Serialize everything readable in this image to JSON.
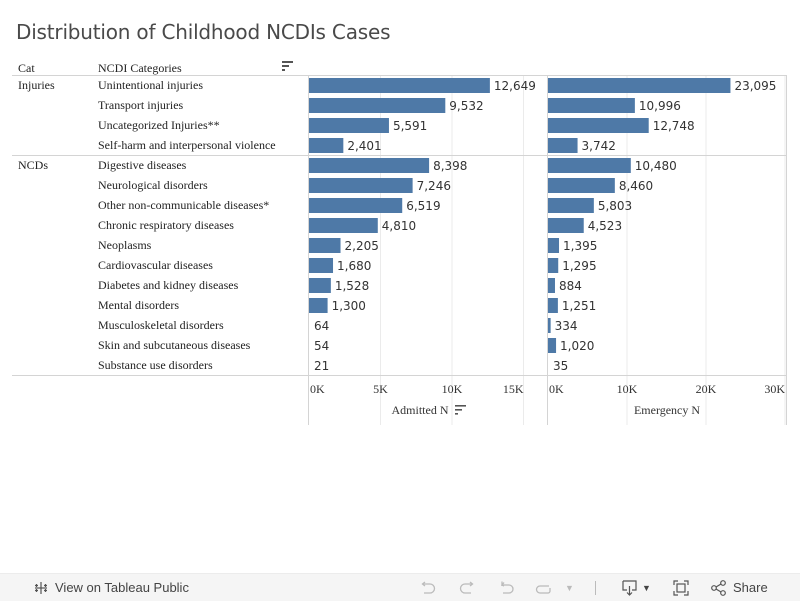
{
  "title": "Distribution of Childhood NCDIs Cases",
  "headers": {
    "cat": "Cat",
    "ncdi": "NCDI Categories"
  },
  "colors": {
    "bar": "#4e79a7",
    "grid": "#ebebeb",
    "border": "#d4d4d4"
  },
  "chart_data": {
    "type": "bar",
    "orientation": "horizontal",
    "title": "Distribution of Childhood NCDIs Cases",
    "groups": [
      {
        "name": "Injuries",
        "categories": [
          "Unintentional injuries",
          "Transport injuries",
          "Uncategorized Injuries**",
          "Self-harm and interpersonal violence"
        ]
      },
      {
        "name": "NCDs",
        "categories": [
          "Digestive diseases",
          "Neurological disorders",
          "Other non-communicable diseases*",
          "Chronic respiratory diseases",
          "Neoplasms",
          "Cardiovascular diseases",
          "Diabetes and kidney diseases",
          "Mental disorders",
          "Musculoskeletal disorders",
          "Skin and subcutaneous diseases",
          "Substance use disorders"
        ]
      }
    ],
    "categories": [
      "Unintentional injuries",
      "Transport injuries",
      "Uncategorized Injuries**",
      "Self-harm and interpersonal violence",
      "Digestive diseases",
      "Neurological disorders",
      "Other non-communicable diseases*",
      "Chronic respiratory diseases",
      "Neoplasms",
      "Cardiovascular diseases",
      "Diabetes and kidney diseases",
      "Mental disorders",
      "Musculoskeletal disorders",
      "Skin and subcutaneous diseases",
      "Substance use disorders"
    ],
    "series": [
      {
        "name": "Admitted N",
        "values": [
          12649,
          9532,
          5591,
          2401,
          8398,
          7246,
          6519,
          4810,
          2205,
          1680,
          1528,
          1300,
          64,
          54,
          21
        ],
        "labels": [
          "12,649",
          "9,532",
          "5,591",
          "2,401",
          "8,398",
          "7,246",
          "6,519",
          "4,810",
          "2,205",
          "1,680",
          "1,528",
          "1,300",
          "64",
          "54",
          "21"
        ],
        "xlim": [
          0,
          15000
        ],
        "ticks": [
          0,
          5000,
          10000,
          15000
        ],
        "tick_labels": [
          "0K",
          "5K",
          "10K",
          "15K"
        ],
        "xlabel": "Admitted N",
        "sorted": true
      },
      {
        "name": "Emergency N",
        "values": [
          23095,
          10996,
          12748,
          3742,
          10480,
          8460,
          5803,
          4523,
          1395,
          1295,
          884,
          1251,
          334,
          1020,
          35
        ],
        "labels": [
          "23,095",
          "10,996",
          "12,748",
          "3,742",
          "10,480",
          "8,460",
          "5,803",
          "4,523",
          "1,395",
          "1,295",
          "884",
          "1,251",
          "334",
          "1,020",
          "35"
        ],
        "xlim": [
          0,
          30000
        ],
        "ticks": [
          0,
          10000,
          20000,
          30000
        ],
        "tick_labels": [
          "0K",
          "10K",
          "20K",
          "30K"
        ],
        "xlabel": "Emergency N",
        "sorted": false
      }
    ],
    "grid": true
  },
  "toolbar": {
    "view_label": "View on Tableau Public",
    "share_label": "Share"
  }
}
